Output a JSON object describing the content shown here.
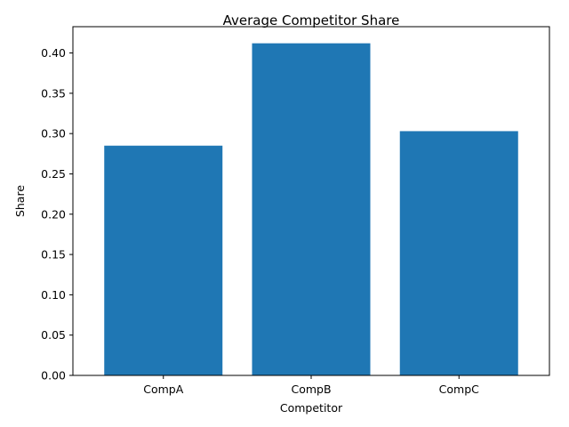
{
  "chart_data": {
    "type": "bar",
    "title": "Average Competitor Share",
    "xlabel": "Competitor",
    "ylabel": "Share",
    "categories": [
      "CompA",
      "CompB",
      "CompC"
    ],
    "values": [
      0.285,
      0.412,
      0.303
    ],
    "ylim": [
      0,
      0.4326
    ],
    "yticks": [
      0.0,
      0.05,
      0.1,
      0.15,
      0.2,
      0.25,
      0.3,
      0.35,
      0.4
    ],
    "ytick_labels": [
      "0.00",
      "0.05",
      "0.10",
      "0.15",
      "0.20",
      "0.25",
      "0.30",
      "0.35",
      "0.40"
    ],
    "bar_color": "#1f77b4",
    "grid": false,
    "legend": false
  }
}
